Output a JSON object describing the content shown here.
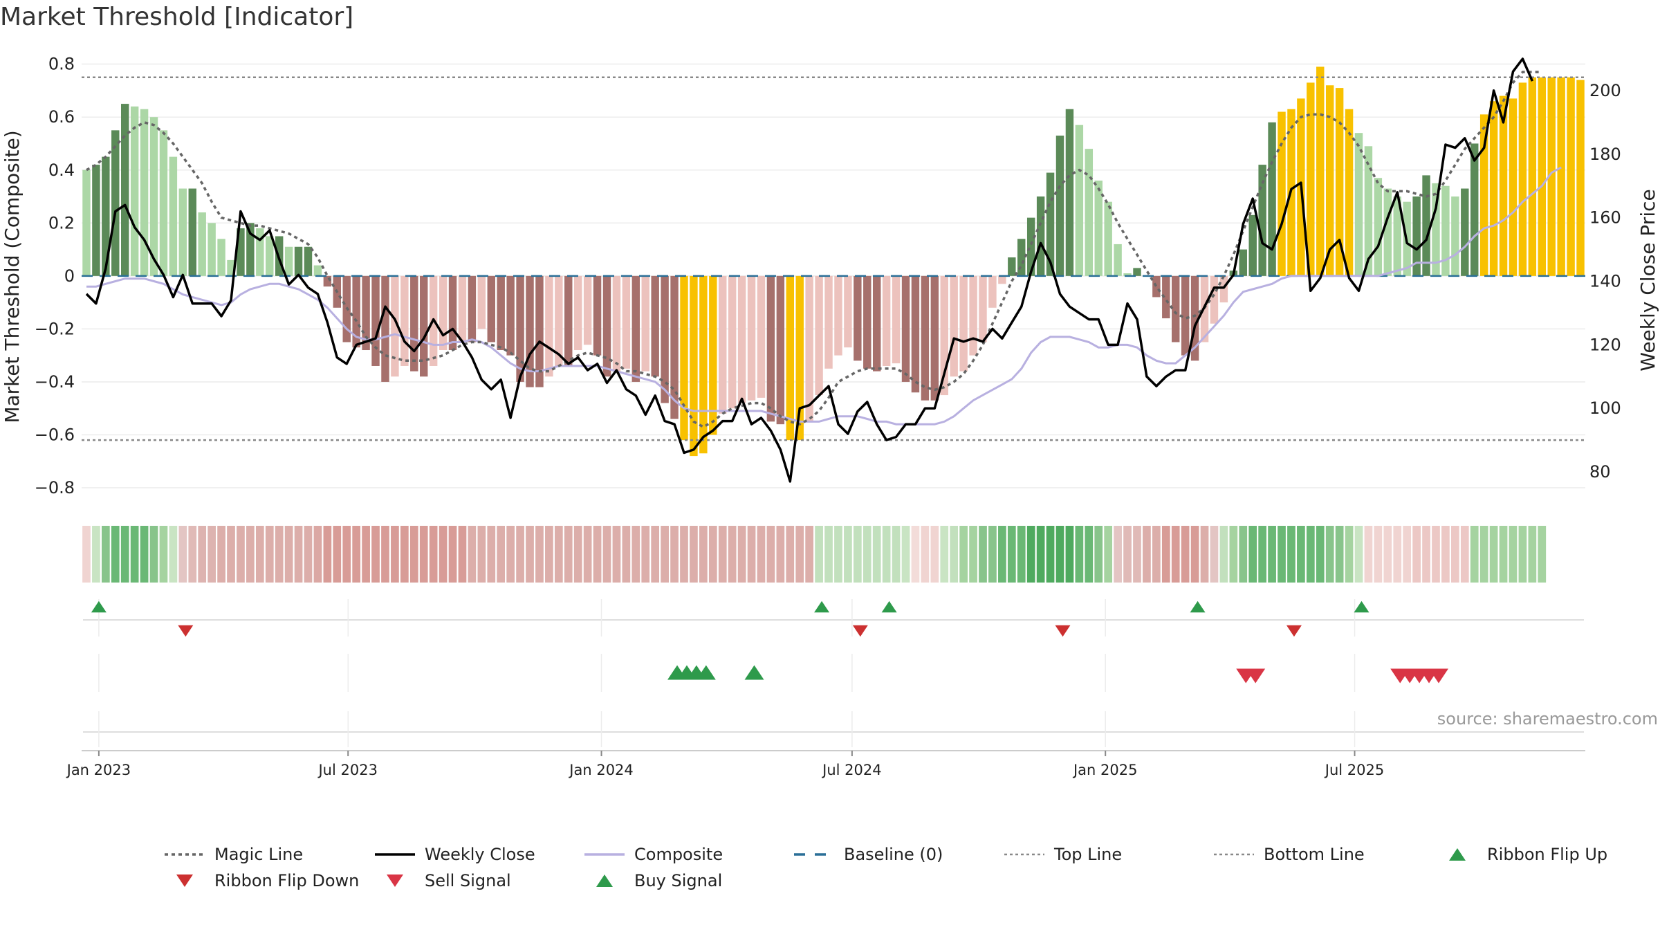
{
  "title": "Market Threshold [Indicator]",
  "source": "source: sharemaestro.com",
  "colors": {
    "pos_dark": "#5b8a58",
    "pos_light": "#acd7a6",
    "neg_dark": "#a6706c",
    "neg_light": "#ecc2bd",
    "extreme": "#f8c100",
    "weekly_close": "#000000",
    "magic_line": "#666666",
    "composite": "#b8b0e0",
    "baseline": "#2a6f97",
    "threshold": "#888888",
    "buy": "#2e9a4b",
    "sell": "#d93545",
    "flip_down": "#cc3030"
  },
  "chart_data": {
    "type": "bar",
    "title": "Market Threshold [Indicator]",
    "x_start": "2022-12-23",
    "x_step_days": 7,
    "ylabel_left": "Market Threshold (Composite)",
    "ylabel_right": "Weekly Close Price",
    "ylim_left": [
      -0.86,
      0.82
    ],
    "ylim_right": [
      70,
      210
    ],
    "yticks_left": [
      -0.8,
      -0.6,
      -0.4,
      -0.2,
      0,
      0.2,
      0.4,
      0.6,
      0.8
    ],
    "ytick_labels_left": [
      "−0.8",
      "−0.6",
      "−0.4",
      "−0.2",
      "0",
      "0.2",
      "0.4",
      "0.6",
      "0.8"
    ],
    "yticks_right": [
      80,
      100,
      120,
      140,
      160,
      180,
      200
    ],
    "ytick_labels_right": [
      "80",
      "100",
      "120",
      "140",
      "160",
      "180",
      "200"
    ],
    "xticks": [
      {
        "label": "Jan 2023",
        "date": "2023-01-01"
      },
      {
        "label": "Jul 2023",
        "date": "2023-07-01"
      },
      {
        "label": "Jan 2024",
        "date": "2024-01-01"
      },
      {
        "label": "Jul 2024",
        "date": "2024-07-01"
      },
      {
        "label": "Jan 2025",
        "date": "2025-01-01"
      },
      {
        "label": "Jul 2025",
        "date": "2025-07-01"
      }
    ],
    "top_line": 0.75,
    "bottom_line": -0.62,
    "baseline": 0,
    "series": [
      {
        "name": "Composite (bars)",
        "values": [
          0.4,
          0.42,
          0.45,
          0.55,
          0.65,
          0.64,
          0.63,
          0.6,
          0.55,
          0.45,
          0.33,
          0.33,
          0.24,
          0.2,
          0.14,
          0.06,
          0.18,
          0.2,
          0.18,
          0.15,
          0.15,
          0.11,
          0.11,
          0.11,
          0.04,
          -0.04,
          -0.12,
          -0.25,
          -0.27,
          -0.28,
          -0.34,
          -0.4,
          -0.38,
          -0.34,
          -0.36,
          -0.38,
          -0.34,
          -0.28,
          -0.28,
          -0.25,
          -0.25,
          -0.2,
          -0.25,
          -0.28,
          -0.3,
          -0.4,
          -0.42,
          -0.42,
          -0.38,
          -0.34,
          -0.34,
          -0.28,
          -0.26,
          -0.3,
          -0.38,
          -0.36,
          -0.35,
          -0.4,
          -0.36,
          -0.38,
          -0.48,
          -0.54,
          -0.62,
          -0.68,
          -0.67,
          -0.6,
          -0.52,
          -0.5,
          -0.48,
          -0.47,
          -0.46,
          -0.55,
          -0.56,
          -0.62,
          -0.62,
          -0.55,
          -0.45,
          -0.35,
          -0.3,
          -0.27,
          -0.32,
          -0.35,
          -0.36,
          -0.34,
          -0.33,
          -0.4,
          -0.44,
          -0.47,
          -0.47,
          -0.45,
          -0.38,
          -0.36,
          -0.3,
          -0.25,
          -0.12,
          -0.03,
          0.07,
          0.14,
          0.22,
          0.3,
          0.39,
          0.53,
          0.63,
          0.57,
          0.48,
          0.36,
          0.28,
          0.12,
          0.01,
          0.03,
          0.0,
          -0.08,
          -0.16,
          -0.25,
          -0.3,
          -0.32,
          -0.25,
          -0.18,
          -0.1,
          0.02,
          0.1,
          0.23,
          0.42,
          0.58,
          0.62,
          0.63,
          0.67,
          0.73,
          0.79,
          0.72,
          0.71,
          0.63,
          0.54,
          0.49,
          0.37,
          0.33,
          0.3,
          0.28,
          0.3,
          0.38,
          0.35,
          0.34,
          0.3,
          0.33,
          0.5,
          0.61,
          0.66,
          0.68,
          0.67,
          0.73,
          0.75,
          0.75,
          0.75,
          0.75,
          0.75,
          0.74
        ]
      },
      {
        "name": "Weekly Close",
        "values": [
          136,
          133,
          144,
          162,
          164,
          157,
          153,
          147,
          142,
          135,
          142,
          133,
          133,
          133,
          129,
          134,
          162,
          155,
          153,
          156,
          147,
          139,
          142,
          138,
          136,
          127,
          116,
          114,
          120,
          121,
          122,
          132,
          128,
          121,
          118,
          122,
          128,
          123,
          125,
          121,
          116,
          109,
          106,
          109,
          97,
          110,
          117,
          121,
          119,
          117,
          114,
          116,
          112,
          114,
          108,
          112,
          106,
          104,
          98,
          104,
          96,
          95,
          86,
          87,
          91,
          93,
          96,
          96,
          103,
          95,
          97,
          93,
          87,
          77,
          100,
          101,
          104,
          107,
          95,
          92,
          99,
          102,
          95,
          90,
          91,
          95,
          95,
          100,
          100,
          111,
          122,
          121,
          122,
          121,
          125,
          122,
          127,
          132,
          143,
          152,
          146,
          136,
          132,
          130,
          128,
          128,
          120,
          120,
          133,
          128,
          110,
          107,
          110,
          112,
          112,
          126,
          132,
          138,
          138,
          142,
          158,
          166,
          152,
          150,
          158,
          169,
          171,
          137,
          141,
          150,
          153,
          141,
          137,
          147,
          151,
          160,
          168,
          152,
          150,
          153,
          163,
          183,
          182,
          185,
          178,
          182,
          200,
          190,
          206,
          210,
          203
        ]
      },
      {
        "name": "Composite",
        "values": [
          -0.04,
          -0.04,
          -0.03,
          -0.02,
          -0.01,
          -0.01,
          -0.01,
          -0.02,
          -0.03,
          -0.05,
          -0.07,
          -0.08,
          -0.09,
          -0.1,
          -0.11,
          -0.1,
          -0.07,
          -0.05,
          -0.04,
          -0.03,
          -0.03,
          -0.04,
          -0.05,
          -0.07,
          -0.09,
          -0.12,
          -0.16,
          -0.2,
          -0.23,
          -0.24,
          -0.24,
          -0.23,
          -0.22,
          -0.23,
          -0.24,
          -0.25,
          -0.26,
          -0.26,
          -0.25,
          -0.25,
          -0.24,
          -0.25,
          -0.27,
          -0.3,
          -0.33,
          -0.35,
          -0.36,
          -0.36,
          -0.35,
          -0.34,
          -0.34,
          -0.34,
          -0.34,
          -0.34,
          -0.35,
          -0.36,
          -0.37,
          -0.38,
          -0.39,
          -0.4,
          -0.43,
          -0.47,
          -0.5,
          -0.51,
          -0.51,
          -0.51,
          -0.51,
          -0.51,
          -0.51,
          -0.51,
          -0.51,
          -0.52,
          -0.53,
          -0.54,
          -0.55,
          -0.55,
          -0.55,
          -0.54,
          -0.53,
          -0.53,
          -0.53,
          -0.54,
          -0.55,
          -0.55,
          -0.56,
          -0.56,
          -0.56,
          -0.56,
          -0.56,
          -0.55,
          -0.53,
          -0.5,
          -0.47,
          -0.45,
          -0.43,
          -0.41,
          -0.39,
          -0.35,
          -0.29,
          -0.25,
          -0.23,
          -0.23,
          -0.23,
          -0.24,
          -0.25,
          -0.27,
          -0.27,
          -0.26,
          -0.26,
          -0.27,
          -0.3,
          -0.32,
          -0.33,
          -0.33,
          -0.3,
          -0.27,
          -0.23,
          -0.19,
          -0.15,
          -0.1,
          -0.06,
          -0.05,
          -0.04,
          -0.03,
          -0.01,
          0.0,
          0.0,
          0.0,
          0.0,
          0.0,
          0.0,
          0.0,
          0.0,
          0.0,
          0.0,
          0.01,
          0.02,
          0.03,
          0.05,
          0.05,
          0.05,
          0.06,
          0.08,
          0.11,
          0.15,
          0.18,
          0.19,
          0.21,
          0.24,
          0.28,
          0.31,
          0.34,
          0.39,
          0.41
        ]
      },
      {
        "name": "Magic Line",
        "values": [
          0.4,
          0.42,
          0.45,
          0.49,
          0.53,
          0.56,
          0.58,
          0.57,
          0.54,
          0.5,
          0.45,
          0.4,
          0.35,
          0.28,
          0.22,
          0.21,
          0.2,
          0.19,
          0.19,
          0.18,
          0.17,
          0.16,
          0.14,
          0.12,
          0.07,
          0.0,
          -0.06,
          -0.12,
          -0.17,
          -0.23,
          -0.27,
          -0.3,
          -0.31,
          -0.32,
          -0.32,
          -0.32,
          -0.31,
          -0.3,
          -0.28,
          -0.26,
          -0.25,
          -0.25,
          -0.26,
          -0.27,
          -0.29,
          -0.32,
          -0.35,
          -0.36,
          -0.36,
          -0.34,
          -0.32,
          -0.3,
          -0.29,
          -0.3,
          -0.31,
          -0.33,
          -0.36,
          -0.36,
          -0.37,
          -0.38,
          -0.4,
          -0.43,
          -0.49,
          -0.55,
          -0.57,
          -0.55,
          -0.52,
          -0.5,
          -0.49,
          -0.48,
          -0.48,
          -0.5,
          -0.53,
          -0.55,
          -0.56,
          -0.54,
          -0.51,
          -0.46,
          -0.4,
          -0.38,
          -0.36,
          -0.35,
          -0.35,
          -0.35,
          -0.35,
          -0.37,
          -0.4,
          -0.42,
          -0.43,
          -0.42,
          -0.4,
          -0.37,
          -0.32,
          -0.26,
          -0.18,
          -0.1,
          -0.02,
          0.04,
          0.12,
          0.2,
          0.28,
          0.34,
          0.38,
          0.4,
          0.38,
          0.33,
          0.27,
          0.2,
          0.14,
          0.08,
          0.02,
          -0.04,
          -0.09,
          -0.14,
          -0.16,
          -0.15,
          -0.12,
          -0.07,
          0.0,
          0.08,
          0.17,
          0.26,
          0.35,
          0.43,
          0.5,
          0.56,
          0.6,
          0.61,
          0.61,
          0.6,
          0.58,
          0.54,
          0.49,
          0.42,
          0.35,
          0.32,
          0.32,
          0.32,
          0.31,
          0.3,
          0.31,
          0.36,
          0.42,
          0.48,
          0.52,
          0.56,
          0.6,
          0.66,
          0.73,
          0.77,
          0.77,
          0.77
        ]
      }
    ],
    "ribbon": [
      "#f0d4d1",
      "#c9e4c3",
      "#88c48b",
      "#6ab875",
      "#6ab875",
      "#6ab875",
      "#6ab875",
      "#88c48b",
      "#a5d3a0",
      "#c9e4c3",
      "#e3c5c3",
      "#e0bab7",
      "#ddb3b0",
      "#ddb3b0",
      "#dcaeaa",
      "#dcaeaa",
      "#dcaeaa",
      "#dcaeaa",
      "#dcaeaa",
      "#dcaeaa",
      "#dcaeaa",
      "#dcaeaa",
      "#dcaeaa",
      "#dcaeaa",
      "#dba8a4",
      "#d89c97",
      "#d89c97",
      "#d89c97",
      "#d89c97",
      "#d89c97",
      "#d89c97",
      "#d89c97",
      "#d89c97",
      "#d89c97",
      "#d89c97",
      "#d89c97",
      "#d89c97",
      "#d89c97",
      "#d89c97",
      "#d89c97",
      "#dcaeaa",
      "#dcaeaa",
      "#dcaeaa",
      "#dcaeaa",
      "#dcaeaa",
      "#dcaeaa",
      "#dcaeaa",
      "#dcaeaa",
      "#dcaeaa",
      "#dcaeaa",
      "#dcaeaa",
      "#dcaeaa",
      "#dcaeaa",
      "#dcaeaa",
      "#dcaeaa",
      "#dcaeaa",
      "#dcaeaa",
      "#dcaeaa",
      "#dcaeaa",
      "#dcaeaa",
      "#dcaeaa",
      "#dcaeaa",
      "#dcaeaa",
      "#dcaeaa",
      "#dcaeaa",
      "#dcaeaa",
      "#dcaeaa",
      "#dcaeaa",
      "#dcaeaa",
      "#dcaeaa",
      "#dcaeaa",
      "#dcaeaa",
      "#dcaeaa",
      "#dcaeaa",
      "#dcaeaa",
      "#dcaeaa",
      "#c2e0bd",
      "#c2e0bd",
      "#c2e0bd",
      "#c2e0bd",
      "#c2e0bd",
      "#c2e0bd",
      "#c2e0bd",
      "#c2e0bd",
      "#c2e0bd",
      "#c9e4c3",
      "#f3dcd9",
      "#f0d4d1",
      "#f0d4d1",
      "#c9e4c3",
      "#c2e0bd",
      "#a5d3a0",
      "#a5d3a0",
      "#88c48b",
      "#88c48b",
      "#6ab875",
      "#6ab875",
      "#6ab875",
      "#4faa5f",
      "#4faa5f",
      "#4faa5f",
      "#4faa5f",
      "#4faa5f",
      "#6ab875",
      "#6ab875",
      "#88c48b",
      "#a5d3a0",
      "#e3c5c3",
      "#e0bab7",
      "#e0bab7",
      "#dcaeaa",
      "#dcaeaa",
      "#d89c97",
      "#d89c97",
      "#d89c97",
      "#d89c97",
      "#dcaeaa",
      "#e3c5c3",
      "#c2e0bd",
      "#a5d3a0",
      "#88c48b",
      "#6ab875",
      "#6ab875",
      "#6ab875",
      "#6ab875",
      "#6ab875",
      "#6ab875",
      "#6ab875",
      "#6ab875",
      "#88c48b",
      "#88c48b",
      "#a5d3a0",
      "#c9e4c3",
      "#f0d4d1",
      "#f0d4d1",
      "#f0d4d1",
      "#f0d4d1",
      "#f0d4d1",
      "#ecc8c5",
      "#ecc8c5",
      "#ecc8c5",
      "#ecc8c5",
      "#ecc8c5",
      "#ecc8c5",
      "#a5d3a0",
      "#a5d3a0",
      "#a5d3a0",
      "#a5d3a0",
      "#a5d3a0",
      "#a5d3a0",
      "#a5d3a0",
      "#a5d3a0"
    ],
    "ribbon_flip_up": [
      "2023-01-01",
      "2024-06-09",
      "2024-07-28",
      "2025-03-09",
      "2025-07-06"
    ],
    "ribbon_flip_down": [
      "2023-03-05",
      "2024-07-07",
      "2024-12-01",
      "2025-05-18"
    ],
    "buy_signals": [
      "2024-02-25",
      "2024-03-03",
      "2024-03-10",
      "2024-03-17",
      "2024-04-21"
    ],
    "sell_signals": [
      "2025-04-13",
      "2025-04-20",
      "2025-08-03",
      "2025-08-10",
      "2025-08-17",
      "2025-08-24",
      "2025-08-31"
    ]
  },
  "legend": [
    {
      "label": "Magic Line",
      "kind": "dotted",
      "color": "#666666"
    },
    {
      "label": "Weekly Close",
      "kind": "solid",
      "color": "#000000"
    },
    {
      "label": "Composite",
      "kind": "solid-light",
      "color": "#b8b0e0"
    },
    {
      "label": "Baseline (0)",
      "kind": "dashed",
      "color": "#2a6f97"
    },
    {
      "label": "Top Line",
      "kind": "fine-dotted",
      "color": "#888888"
    },
    {
      "label": "Bottom Line",
      "kind": "fine-dotted",
      "color": "#888888"
    },
    {
      "label": "Ribbon Flip Up",
      "kind": "tri-up",
      "color": "#2e9a4b"
    },
    {
      "label": "Ribbon Flip Down",
      "kind": "tri-down",
      "color": "#cc3030"
    },
    {
      "label": "Sell Signal",
      "kind": "tri-down",
      "color": "#d93545"
    },
    {
      "label": "Buy Signal",
      "kind": "tri-up",
      "color": "#2e9a4b"
    }
  ]
}
